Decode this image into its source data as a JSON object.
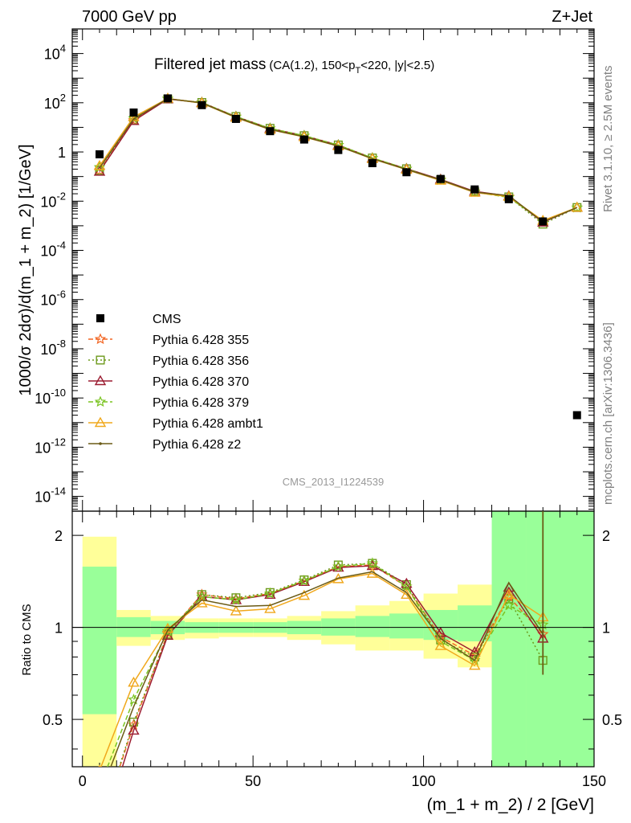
{
  "header": {
    "left": "7000 GeV pp",
    "right": "Z+Jet"
  },
  "title": {
    "main": "Filtered jet mass",
    "sub_pre": "(CA(1.2), 150<p",
    "sub_sub": "T",
    "sub_post": "<220, |y|<2.5)"
  },
  "side_text": {
    "top": "Rivet 3.1.10, ≥ 2.5M events",
    "bottom": "mcplots.cern.ch [arXiv:1306.3436]"
  },
  "watermark": "CMS_2013_I1224539",
  "chart_data": {
    "type": "line",
    "xlabel": "(m_1 + m_2) / 2 [GeV]",
    "ylabel_main": "1000/σ 2dσ)/d(m_1 + m_2) [1/GeV]",
    "ylabel_ratio": "Ratio to CMS",
    "xlim": [
      -3,
      150
    ],
    "main_ylog_lim_exp": [
      -14.6,
      5
    ],
    "ratio_ylim": [
      0.35,
      2.4
    ],
    "x_ticks": [
      0,
      50,
      100,
      150
    ],
    "x_tick_labels": [
      "0",
      "50",
      "100",
      "150"
    ],
    "main_y_tick_exps": [
      4,
      2,
      0,
      -2,
      -4,
      -6,
      -8,
      -10,
      -12,
      -14
    ],
    "main_y_tick_labels": [
      {
        "b": "10",
        "e": "4"
      },
      {
        "b": "10",
        "e": "2"
      },
      {
        "b": "1",
        "e": ""
      },
      {
        "b": "10",
        "e": "-2"
      },
      {
        "b": "10",
        "e": "-4"
      },
      {
        "b": "10",
        "e": "-6"
      },
      {
        "b": "10",
        "e": "-8"
      },
      {
        "b": "10",
        "e": "-10"
      },
      {
        "b": "10",
        "e": "-12"
      },
      {
        "b": "10",
        "e": "-14"
      }
    ],
    "ratio_y_ticks": [
      0.5,
      1,
      2
    ],
    "ratio_y_tick_labels": [
      "0.5",
      "1",
      "2"
    ],
    "x_centers": [
      5,
      15,
      25,
      35,
      45,
      55,
      65,
      75,
      85,
      95,
      105,
      115,
      125,
      135,
      145
    ],
    "data": {
      "name": "CMS",
      "values": [
        0.8,
        40,
        150,
        80,
        22,
        7,
        3.2,
        1.2,
        0.35,
        0.15,
        0.08,
        0.03,
        0.012,
        0.0015,
        2e-11
      ]
    },
    "bands": {
      "x_edges": [
        0,
        10,
        20,
        30,
        40,
        50,
        60,
        70,
        80,
        90,
        100,
        110,
        120,
        130,
        150
      ],
      "green_lo": [
        0.52,
        0.93,
        0.95,
        0.96,
        0.96,
        0.96,
        0.95,
        0.94,
        0.93,
        0.92,
        0.91,
        0.9,
        0.3,
        0.3
      ],
      "green_hi": [
        1.58,
        1.08,
        1.05,
        1.04,
        1.04,
        1.04,
        1.05,
        1.07,
        1.09,
        1.11,
        1.14,
        1.18,
        2.4,
        2.4
      ],
      "yellow_lo": [
        0.3,
        0.87,
        0.91,
        0.92,
        0.93,
        0.93,
        0.91,
        0.88,
        0.84,
        0.84,
        0.79,
        0.74,
        0.54,
        0.3
      ],
      "yellow_hi": [
        1.98,
        1.14,
        1.09,
        1.07,
        1.07,
        1.07,
        1.09,
        1.13,
        1.18,
        1.22,
        1.29,
        1.38,
        1.9,
        2.4
      ]
    },
    "series": [
      {
        "name": "Pythia 6.428 355",
        "color": "#f26522",
        "dash": "6,3",
        "marker": "star",
        "ratio": [
          0.22,
          0.48,
          0.96,
          1.28,
          1.24,
          1.29,
          1.42,
          1.58,
          1.6,
          1.36,
          0.93,
          0.81,
          1.26,
          0.95,
          1.0
        ]
      },
      {
        "name": "Pythia 6.428 356",
        "color": "#6d9a1c",
        "dash": "2,3",
        "marker": "square",
        "ratio": [
          0.22,
          0.49,
          0.95,
          1.28,
          1.25,
          1.3,
          1.43,
          1.6,
          1.62,
          1.38,
          0.91,
          0.8,
          1.24,
          0.78,
          1.0
        ]
      },
      {
        "name": "Pythia 6.428 370",
        "color": "#9b1c31",
        "dash": "",
        "marker": "triangle",
        "ratio": [
          0.2,
          0.46,
          0.94,
          1.26,
          1.23,
          1.28,
          1.41,
          1.57,
          1.59,
          1.39,
          0.96,
          0.83,
          1.35,
          0.92,
          1.0
        ]
      },
      {
        "name": "Pythia 6.428 379",
        "color": "#7bc422",
        "dash": "6,3",
        "marker": "star",
        "ratio": [
          0.3,
          0.58,
          0.97,
          1.26,
          1.23,
          1.29,
          1.42,
          1.58,
          1.62,
          1.36,
          0.9,
          0.78,
          1.18,
          1.02,
          1.0
        ]
      },
      {
        "name": "Pythia 6.428 ambt1",
        "color": "#f0a81c",
        "dash": "",
        "marker": "triangle",
        "ratio": [
          0.34,
          0.66,
          0.99,
          1.2,
          1.13,
          1.15,
          1.27,
          1.44,
          1.5,
          1.28,
          0.87,
          0.75,
          1.28,
          1.08,
          1.0
        ]
      },
      {
        "name": "Pythia 6.428 z2",
        "color": "#6b5b16",
        "dash": "",
        "marker": "dot",
        "ratio": [
          0.28,
          0.55,
          0.98,
          1.23,
          1.17,
          1.18,
          1.3,
          1.45,
          1.52,
          1.3,
          0.92,
          0.78,
          1.4,
          0.95,
          1.0
        ]
      }
    ]
  }
}
